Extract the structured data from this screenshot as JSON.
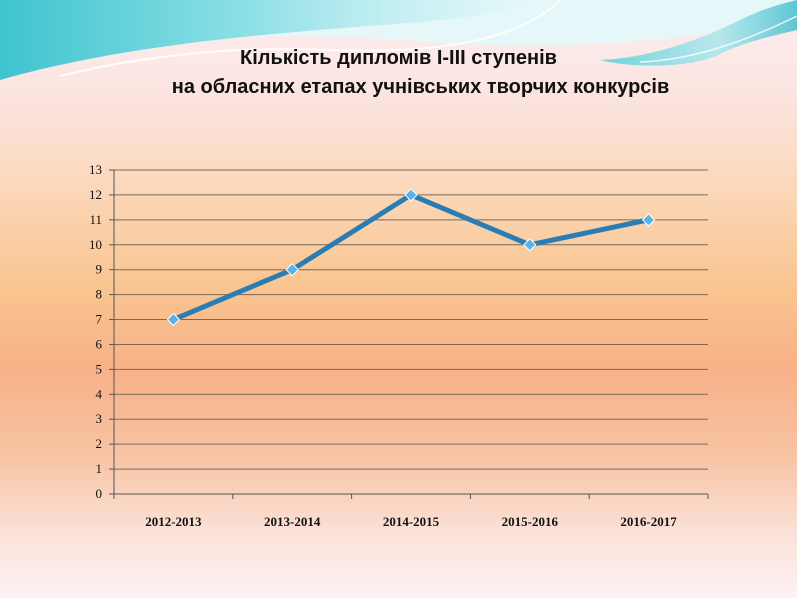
{
  "slide": {
    "title_line_1": "Кількість дипломів І-ІІІ ступенів",
    "title_line_2": "на обласних  етапах учнівських творчих конкурсів"
  },
  "colors": {
    "line": "#2a7db4",
    "marker": "#5ab3e8",
    "gridline": "#7b6a5a",
    "axis": "#555555"
  },
  "chart_data": {
    "type": "line",
    "title": "Кількість дипломів І-ІІІ ступенів на обласних  етапах учнівських творчих конкурсів",
    "categories": [
      "2012-2013",
      "2013-2014",
      "2014-2015",
      "2015-2016",
      "2016-2017"
    ],
    "series": [
      {
        "values": [
          7,
          9,
          12,
          10,
          11
        ]
      }
    ],
    "ylim": [
      0,
      13
    ],
    "yticks": [
      "0",
      "1",
      "2",
      "3",
      "4",
      "5",
      "6",
      "7",
      "8",
      "9",
      "10",
      "11",
      "12",
      "13"
    ],
    "grid": true,
    "legend": "none",
    "xlabel": "",
    "ylabel": ""
  }
}
